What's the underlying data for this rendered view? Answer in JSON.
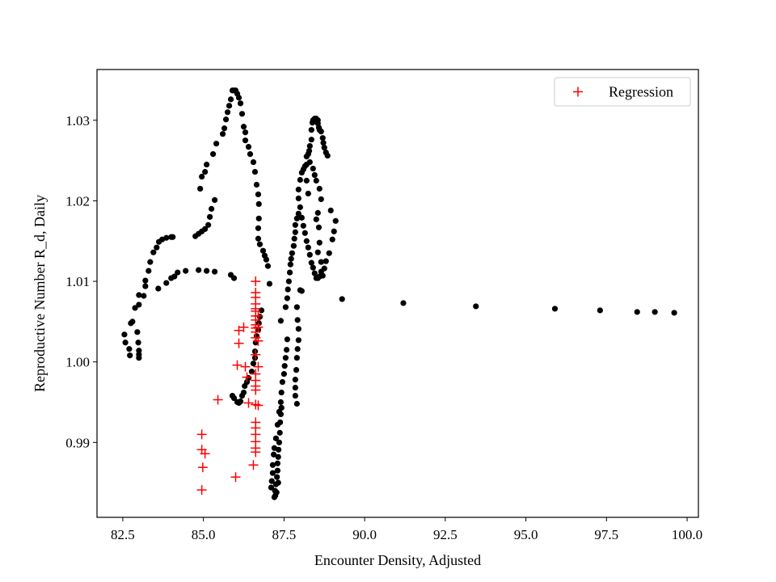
{
  "chart_data": {
    "type": "scatter",
    "title": "",
    "xlabel": "Encounter Density, Adjusted",
    "ylabel": "Reproductive Number R_d, Daily",
    "xlim": [
      81.7,
      100.35
    ],
    "ylim": [
      0.9807,
      1.0363
    ],
    "x_ticks": [
      82.5,
      85.0,
      87.5,
      90.0,
      92.5,
      95.0,
      97.5,
      100.0
    ],
    "x_tick_labels": [
      "82.5",
      "85.0",
      "87.5",
      "90.0",
      "92.5",
      "95.0",
      "97.5",
      "100.0"
    ],
    "y_ticks": [
      0.99,
      1.0,
      1.01,
      1.02,
      1.03
    ],
    "y_tick_labels": [
      "0.99",
      "1.00",
      "1.01",
      "1.02",
      "1.03"
    ],
    "grid": false,
    "legend_position": "top-right",
    "legend_entries": [
      "Regression"
    ],
    "series": [
      {
        "marker": "dot",
        "color": "#000000",
        "points": [
          [
            82.55,
            1.0034
          ],
          [
            82.58,
            1.0024
          ],
          [
            82.7,
            1.0016
          ],
          [
            82.72,
            1.0008
          ],
          [
            82.75,
            1.0048
          ],
          [
            82.8,
            1.005
          ],
          [
            82.88,
            1.0067
          ],
          [
            83.0,
            1.0071
          ],
          [
            83.0,
            1.0083
          ],
          [
            82.95,
            1.0037
          ],
          [
            82.98,
            1.0024
          ],
          [
            83.0,
            1.0014
          ],
          [
            83.0,
            1.0009
          ],
          [
            83.0,
            1.0005
          ],
          [
            83.15,
            1.0082
          ],
          [
            83.2,
            1.0094
          ],
          [
            83.2,
            1.0101
          ],
          [
            83.3,
            1.0113
          ],
          [
            83.35,
            1.0124
          ],
          [
            83.45,
            1.0136
          ],
          [
            83.55,
            1.0142
          ],
          [
            83.62,
            1.0149
          ],
          [
            83.72,
            1.0152
          ],
          [
            83.85,
            1.0154
          ],
          [
            84.0,
            1.0155
          ],
          [
            84.05,
            1.0155
          ],
          [
            83.6,
            1.0091
          ],
          [
            83.85,
            1.0098
          ],
          [
            84.0,
            1.0104
          ],
          [
            84.1,
            1.0106
          ],
          [
            84.2,
            1.0111
          ],
          [
            84.45,
            1.0113
          ],
          [
            84.85,
            1.0114
          ],
          [
            85.1,
            1.0113
          ],
          [
            85.35,
            1.0112
          ],
          [
            85.85,
            1.0108
          ],
          [
            85.95,
            1.0104
          ],
          [
            84.75,
            1.0156
          ],
          [
            84.85,
            1.0159
          ],
          [
            84.95,
            1.0162
          ],
          [
            85.05,
            1.0165
          ],
          [
            85.15,
            1.017
          ],
          [
            85.2,
            1.018
          ],
          [
            85.25,
            1.019
          ],
          [
            85.35,
            1.0201
          ],
          [
            84.9,
            1.0215
          ],
          [
            84.95,
            1.023
          ],
          [
            85.05,
            1.0236
          ],
          [
            85.1,
            1.0245
          ],
          [
            85.3,
            1.0258
          ],
          [
            85.4,
            1.0271
          ],
          [
            85.6,
            1.0283
          ],
          [
            85.65,
            1.029
          ],
          [
            85.7,
            1.0301
          ],
          [
            85.75,
            1.031
          ],
          [
            85.8,
            1.0318
          ],
          [
            85.85,
            1.0326
          ],
          [
            85.9,
            1.0337
          ],
          [
            85.95,
            1.0337
          ],
          [
            86.0,
            1.0337
          ],
          [
            86.05,
            1.0333
          ],
          [
            86.1,
            1.0328
          ],
          [
            86.15,
            1.0321
          ],
          [
            86.2,
            1.0308
          ],
          [
            86.25,
            1.0292
          ],
          [
            86.3,
            1.0285
          ],
          [
            86.3,
            1.0275
          ],
          [
            86.4,
            1.0267
          ],
          [
            86.45,
            1.0258
          ],
          [
            86.55,
            1.0248
          ],
          [
            86.6,
            1.0236
          ],
          [
            86.65,
            1.022
          ],
          [
            86.7,
            1.0208
          ],
          [
            86.72,
            1.0196
          ],
          [
            86.72,
            1.0178
          ],
          [
            86.7,
            1.0166
          ],
          [
            86.7,
            1.0153
          ],
          [
            86.75,
            1.0146
          ],
          [
            86.85,
            1.0138
          ],
          [
            86.9,
            1.0132
          ],
          [
            86.95,
            1.0127
          ],
          [
            87.0,
            1.0119
          ],
          [
            86.8,
            1.0064
          ],
          [
            86.75,
            1.0056
          ],
          [
            86.72,
            1.0048
          ],
          [
            86.7,
            1.004
          ],
          [
            86.65,
            1.0032
          ],
          [
            86.62,
            1.0024
          ],
          [
            86.6,
            1.0013
          ],
          [
            86.6,
            1.0005
          ],
          [
            86.55,
            0.9998
          ],
          [
            86.5,
            0.9988
          ],
          [
            86.4,
            0.998
          ],
          [
            86.35,
            0.9975
          ],
          [
            86.28,
            0.997
          ],
          [
            86.25,
            0.9962
          ],
          [
            86.2,
            0.9958
          ],
          [
            86.15,
            0.9951
          ],
          [
            86.1,
            0.9949
          ],
          [
            86.05,
            0.995
          ],
          [
            85.95,
            0.9955
          ],
          [
            85.9,
            0.9958
          ],
          [
            87.05,
            1.0097
          ],
          [
            87.4,
            1.0051
          ],
          [
            87.55,
            1.0068
          ],
          [
            87.6,
            1.0079
          ],
          [
            87.62,
            1.009
          ],
          [
            87.65,
            1.01
          ],
          [
            87.68,
            1.0111
          ],
          [
            87.7,
            1.0121
          ],
          [
            87.72,
            1.0128
          ],
          [
            87.75,
            1.0135
          ],
          [
            87.8,
            1.0144
          ],
          [
            87.82,
            1.0153
          ],
          [
            87.85,
            1.0161
          ],
          [
            87.85,
            1.017
          ],
          [
            87.9,
            1.0178
          ],
          [
            87.95,
            1.0184
          ],
          [
            87.6,
            1.0028
          ],
          [
            87.58,
            1.0015
          ],
          [
            87.55,
            1.0005
          ],
          [
            87.52,
            0.9995
          ],
          [
            87.5,
            0.9985
          ],
          [
            87.45,
            0.9975
          ],
          [
            87.42,
            0.9962
          ],
          [
            87.4,
            0.995
          ],
          [
            87.35,
            0.9938
          ],
          [
            87.3,
            0.9922
          ],
          [
            87.25,
            0.9905
          ],
          [
            87.2,
            0.9893
          ],
          [
            87.18,
            0.9885
          ],
          [
            87.15,
            0.9872
          ],
          [
            87.15,
            0.9862
          ],
          [
            87.12,
            0.9852
          ],
          [
            87.1,
            0.9844
          ],
          [
            87.2,
            0.9832
          ],
          [
            87.22,
            0.984
          ],
          [
            87.25,
            0.9848
          ],
          [
            87.28,
            0.9857
          ],
          [
            87.3,
            0.9865
          ],
          [
            87.3,
            0.9874
          ],
          [
            87.32,
            0.9882
          ],
          [
            87.33,
            0.9891
          ],
          [
            87.35,
            0.99
          ],
          [
            87.37,
            0.9912
          ],
          [
            87.38,
            0.9925
          ],
          [
            87.4,
            0.9935
          ],
          [
            87.42,
            0.9943
          ],
          [
            87.42,
            0.9943
          ],
          [
            87.32,
            0.985
          ],
          [
            87.27,
            0.9838
          ],
          [
            87.23,
            0.9834
          ],
          [
            87.9,
            0.9948
          ],
          [
            87.85,
            0.9958
          ],
          [
            87.85,
            0.9968
          ],
          [
            87.85,
            0.9978
          ],
          [
            87.88,
            0.999
          ],
          [
            87.9,
            1.0005
          ],
          [
            87.92,
            1.0016
          ],
          [
            87.95,
            1.0027
          ],
          [
            87.95,
            1.0041
          ],
          [
            87.92,
            1.0052
          ],
          [
            87.9,
            1.0068
          ],
          [
            88.0,
            1.0089
          ],
          [
            88.05,
            1.0088
          ],
          [
            87.95,
            1.0203
          ],
          [
            87.95,
            1.0214
          ],
          [
            88.0,
            1.0226
          ],
          [
            88.05,
            1.0235
          ],
          [
            88.1,
            1.0239
          ],
          [
            88.15,
            1.0243
          ],
          [
            88.2,
            1.0245
          ],
          [
            88.25,
            1.0258
          ],
          [
            88.28,
            1.0262
          ],
          [
            88.3,
            1.0268
          ],
          [
            88.35,
            1.0276
          ],
          [
            88.35,
            1.0288
          ],
          [
            88.38,
            1.0297
          ],
          [
            88.4,
            1.03
          ],
          [
            88.45,
            1.0302
          ],
          [
            88.5,
            1.0302
          ],
          [
            88.55,
            1.03
          ],
          [
            88.55,
            1.0296
          ],
          [
            88.58,
            1.0291
          ],
          [
            88.6,
            1.0288
          ],
          [
            88.65,
            1.0286
          ],
          [
            88.7,
            1.0278
          ],
          [
            88.72,
            1.0272
          ],
          [
            88.75,
            1.0266
          ],
          [
            88.8,
            1.026
          ],
          [
            88.85,
            1.0256
          ],
          [
            88.0,
            1.0192
          ],
          [
            88.05,
            1.0179
          ],
          [
            88.1,
            1.0169
          ],
          [
            88.15,
            1.016
          ],
          [
            88.2,
            1.015
          ],
          [
            88.25,
            1.0142
          ],
          [
            88.3,
            1.0133
          ],
          [
            88.35,
            1.0123
          ],
          [
            88.4,
            1.0117
          ],
          [
            88.45,
            1.011
          ],
          [
            88.5,
            1.0104
          ],
          [
            88.55,
            1.0104
          ],
          [
            88.6,
            1.0106
          ],
          [
            88.65,
            1.0112
          ],
          [
            88.2,
            1.0255
          ],
          [
            88.3,
            1.0248
          ],
          [
            88.4,
            1.024
          ],
          [
            88.5,
            1.0225
          ],
          [
            88.6,
            1.0215
          ],
          [
            88.65,
            1.0202
          ],
          [
            88.55,
            1.0185
          ],
          [
            88.5,
            1.0177
          ],
          [
            88.58,
            1.0167
          ],
          [
            88.6,
            1.0148
          ],
          [
            88.55,
            1.0136
          ],
          [
            88.65,
            1.0124
          ],
          [
            88.7,
            1.0107
          ],
          [
            88.75,
            1.0116
          ],
          [
            88.8,
            1.0125
          ],
          [
            88.9,
            1.0135
          ],
          [
            89.0,
            1.0152
          ],
          [
            89.05,
            1.0162
          ],
          [
            89.1,
            1.0175
          ],
          [
            88.95,
            1.0188
          ],
          [
            88.2,
            1.0225
          ],
          [
            88.45,
            1.0232
          ],
          [
            88.25,
            1.0209
          ],
          [
            89.3,
            1.0078
          ],
          [
            91.2,
            1.0073
          ],
          [
            93.45,
            1.0069
          ],
          [
            95.9,
            1.0066
          ],
          [
            97.3,
            1.0064
          ],
          [
            98.45,
            1.0062
          ],
          [
            99.0,
            1.0062
          ],
          [
            99.6,
            1.0061
          ]
        ]
      },
      {
        "name": "Regression",
        "marker": "plus",
        "color": "#ff0000",
        "points": [
          [
            84.95,
            0.991
          ],
          [
            84.95,
            0.9891
          ],
          [
            85.05,
            0.9886
          ],
          [
            84.98,
            0.9869
          ],
          [
            84.95,
            0.9841
          ],
          [
            86.0,
            0.9857
          ],
          [
            85.45,
            0.9953
          ],
          [
            86.05,
            0.9996
          ],
          [
            86.1,
            1.0023
          ],
          [
            86.1,
            1.0039
          ],
          [
            86.25,
            1.0043
          ],
          [
            86.3,
            0.9994
          ],
          [
            86.35,
            0.9981
          ],
          [
            86.4,
            0.9949
          ],
          [
            86.55,
            0.9872
          ],
          [
            86.62,
            1.01
          ],
          [
            86.62,
            1.0086
          ],
          [
            86.62,
            1.008
          ],
          [
            86.62,
            1.0072
          ],
          [
            86.62,
            1.0066
          ],
          [
            86.62,
            1.0063
          ],
          [
            86.62,
            1.0057
          ],
          [
            86.62,
            1.0052
          ],
          [
            86.62,
            1.0046
          ],
          [
            86.62,
            1.0042
          ],
          [
            86.62,
            1.0037
          ],
          [
            86.62,
            1.003
          ],
          [
            86.62,
            1.0009
          ],
          [
            86.62,
            0.9985
          ],
          [
            86.62,
            0.9977
          ],
          [
            86.62,
            0.997
          ],
          [
            86.62,
            0.9965
          ],
          [
            86.62,
            0.9947
          ],
          [
            86.62,
            0.9925
          ],
          [
            86.62,
            0.9918
          ],
          [
            86.62,
            0.991
          ],
          [
            86.62,
            0.9901
          ],
          [
            86.62,
            0.9893
          ],
          [
            86.62,
            0.9888
          ],
          [
            86.7,
            1.0057
          ],
          [
            86.7,
            1.0043
          ],
          [
            86.7,
            1.0026
          ],
          [
            86.7,
            0.9994
          ],
          [
            86.7,
            0.9946
          ]
        ]
      }
    ]
  }
}
